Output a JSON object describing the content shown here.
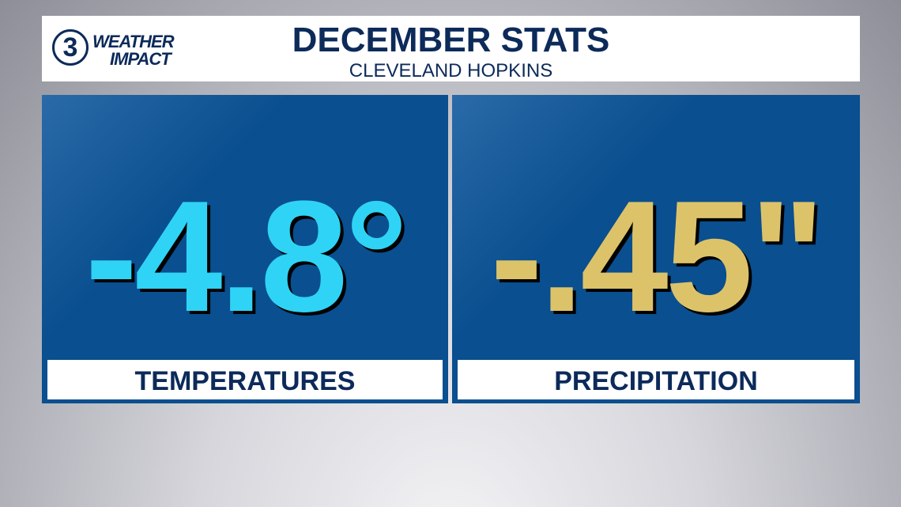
{
  "logo": {
    "channel": "3",
    "line1": "WEATHER",
    "line2": "IMPACT"
  },
  "header": {
    "title": "DECEMBER STATS",
    "subtitle": "CLEVELAND HOPKINS"
  },
  "panels": [
    {
      "value": "-4.8°",
      "label": "TEMPERATURES",
      "color": "#2fd3f5"
    },
    {
      "value": "-.45\"",
      "label": "PRECIPITATION",
      "color": "#dcc36a"
    }
  ]
}
